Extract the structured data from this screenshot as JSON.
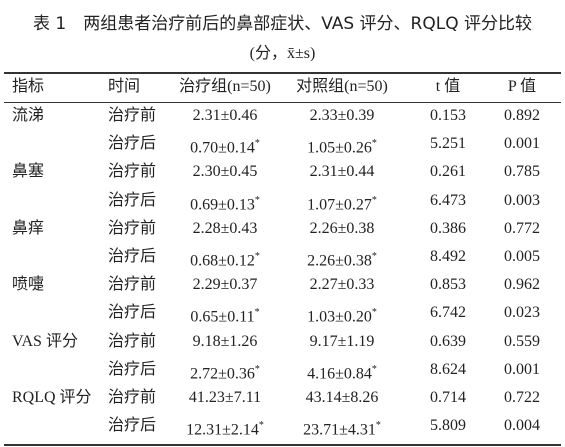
{
  "header": {
    "title": "表 1　两组患者治疗前后的鼻部症状、VAS 评分、RQLQ 评分比较",
    "subtitle": "(分，x̄±s)"
  },
  "table": {
    "columns": [
      "指标",
      "时间",
      "治疗组(n=50)",
      "对照组(n=50)",
      "t 值",
      "P 值"
    ],
    "groups": [
      {
        "indicator": "流涕",
        "rows": [
          {
            "time": "治疗前",
            "treatment": {
              "text": "2.31±0.46"
            },
            "control": {
              "text": "2.33±0.39"
            },
            "t": "0.153",
            "p": "0.892"
          },
          {
            "time": "治疗后",
            "treatment": {
              "text": "0.70±0.14",
              "mark": "*"
            },
            "control": {
              "text": "1.05±0.26",
              "mark": "*"
            },
            "t": "5.251",
            "p": "0.001"
          }
        ]
      },
      {
        "indicator": "鼻塞",
        "rows": [
          {
            "time": "治疗前",
            "treatment": {
              "text": "2.30±0.45"
            },
            "control": {
              "text": "2.31±0.44"
            },
            "t": "0.261",
            "p": "0.785"
          },
          {
            "time": "治疗后",
            "treatment": {
              "text": "0.69±0.13",
              "mark": "*"
            },
            "control": {
              "text": "1.07±0.27",
              "mark": "*"
            },
            "t": "6.473",
            "p": "0.003"
          }
        ]
      },
      {
        "indicator": "鼻痒",
        "rows": [
          {
            "time": "治疗前",
            "treatment": {
              "text": "2.28±0.43"
            },
            "control": {
              "text": "2.26±0.38"
            },
            "t": "0.386",
            "p": "0.772"
          },
          {
            "time": "治疗后",
            "treatment": {
              "text": "0.68±0.12",
              "mark": "*"
            },
            "control": {
              "text": "2.26±0.38",
              "mark": "*"
            },
            "t": "8.492",
            "p": "0.005"
          }
        ]
      },
      {
        "indicator": "喷嚏",
        "rows": [
          {
            "time": "治疗前",
            "treatment": {
              "text": "2.29±0.37"
            },
            "control": {
              "text": "2.27±0.33"
            },
            "t": "0.853",
            "p": "0.962"
          },
          {
            "time": "治疗后",
            "treatment": {
              "text": "0.65±0.11",
              "mark": "*"
            },
            "control": {
              "text": "1.03±0.20",
              "mark": "*"
            },
            "t": "6.742",
            "p": "0.023"
          }
        ]
      },
      {
        "indicator": "VAS 评分",
        "rows": [
          {
            "time": "治疗前",
            "treatment": {
              "text": "9.18±1.26"
            },
            "control": {
              "text": "9.17±1.19"
            },
            "t": "0.639",
            "p": "0.559"
          },
          {
            "time": "治疗后",
            "treatment": {
              "text": "2.72±0.36",
              "mark": "*"
            },
            "control": {
              "text": "4.16±0.84",
              "mark": "*"
            },
            "t": "8.624",
            "p": "0.001"
          }
        ]
      },
      {
        "indicator": "RQLQ 评分",
        "rows": [
          {
            "time": "治疗前",
            "treatment": {
              "text": "41.23±7.11"
            },
            "control": {
              "text": "43.14±8.26"
            },
            "t": "0.714",
            "p": "0.722"
          },
          {
            "time": "治疗后",
            "treatment": {
              "text": "12.31±2.14",
              "mark": "*"
            },
            "control": {
              "text": "23.71±4.31",
              "mark": "*"
            },
            "t": "5.809",
            "p": "0.004"
          }
        ]
      }
    ]
  }
}
